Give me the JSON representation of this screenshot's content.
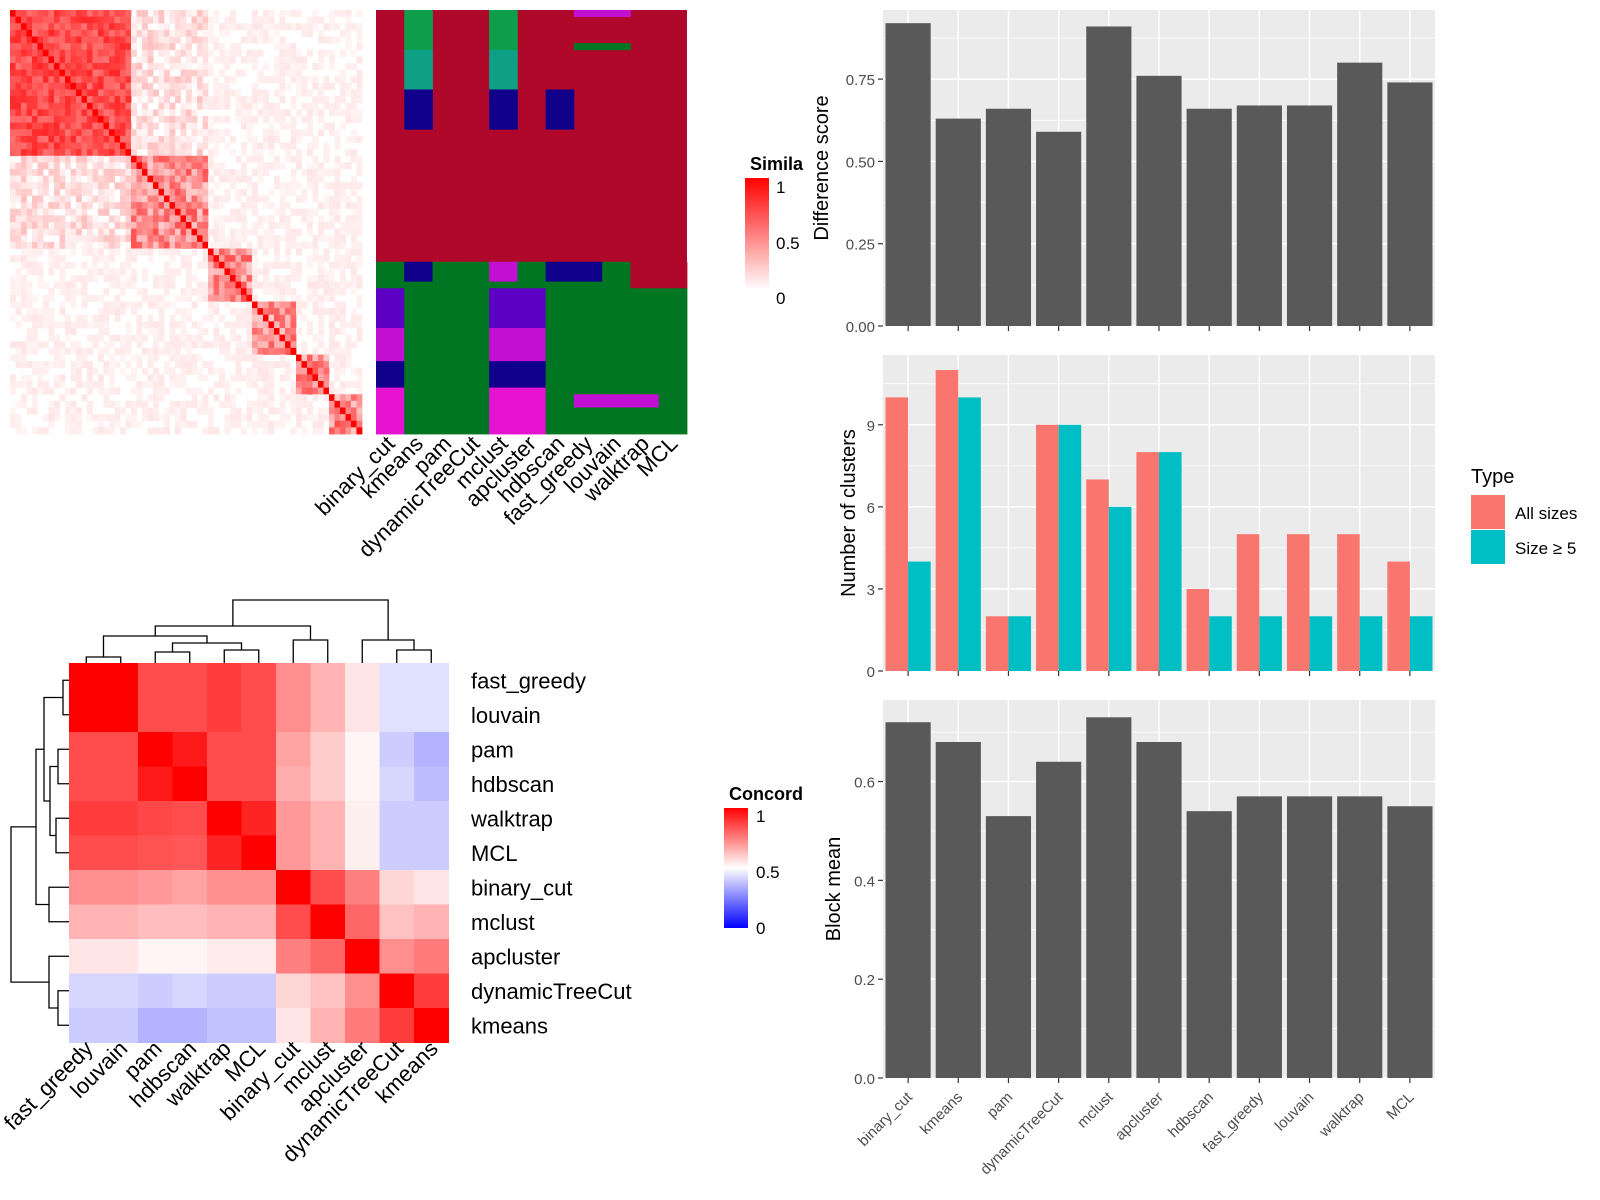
{
  "methods_order": [
    "binary_cut",
    "kmeans",
    "pam",
    "dynamicTreeCut",
    "mclust",
    "apcluster",
    "hdbscan",
    "fast_greedy",
    "louvain",
    "walktrap",
    "MCL"
  ],
  "colors": {
    "bar": "#595959",
    "panel_bg": "#ebebeb",
    "grid": "#ffffff",
    "all_sizes": "#F8766D",
    "size_ge5": "#00BFC4",
    "sim_high": "#ff0000",
    "sim_low": "#ffffff",
    "conc_low": "#0000ff",
    "cluster_palette": [
      "#b0082a",
      "#007622",
      "#11008a",
      "#c20fd2",
      "#5c00c4",
      "#0e9e4a",
      "#0e9f84",
      "#e512cf"
    ]
  },
  "similarity_heatmap": {
    "legend_title": "Simila",
    "legend_ticks": [
      "1",
      "0.5",
      "0"
    ]
  },
  "cluster_assignment": {
    "column_labels": [
      "binary_cut",
      "kmeans",
      "pam",
      "dynamicTreeCut",
      "mclust",
      "apcluster",
      "hdbscan",
      "fast_greedy",
      "louvain",
      "walktrap",
      "MCL"
    ]
  },
  "concordance": {
    "legend_title": "Concord",
    "legend_ticks": [
      "1",
      "0.5",
      "0"
    ],
    "row_labels": [
      "fast_greedy",
      "louvain",
      "pam",
      "hdbscan",
      "walktrap",
      "MCL",
      "binary_cut",
      "mclust",
      "apcluster",
      "dynamicTreeCut",
      "kmeans"
    ],
    "col_labels": [
      "fast_greedy",
      "louvain",
      "pam",
      "hdbscan",
      "walktrap",
      "MCL",
      "binary_cut",
      "mclust",
      "apcluster",
      "dynamicTreeCut",
      "kmeans"
    ]
  },
  "legend_type": {
    "title": "Type",
    "items": [
      "All sizes",
      "Size ≥ 5"
    ]
  },
  "chart_data": [
    {
      "type": "bar",
      "ylabel": "Difference score",
      "categories": [
        "binary_cut",
        "kmeans",
        "pam",
        "dynamicTreeCut",
        "mclust",
        "apcluster",
        "hdbscan",
        "fast_greedy",
        "louvain",
        "walktrap",
        "MCL"
      ],
      "values": [
        0.92,
        0.63,
        0.66,
        0.59,
        0.91,
        0.76,
        0.66,
        0.67,
        0.67,
        0.8,
        0.74
      ],
      "yticks": [
        "0.00",
        "0.25",
        "0.50",
        "0.75"
      ],
      "ylim": [
        0,
        0.96
      ]
    },
    {
      "type": "bar",
      "ylabel": "Number of clusters",
      "categories": [
        "binary_cut",
        "kmeans",
        "pam",
        "dynamicTreeCut",
        "mclust",
        "apcluster",
        "hdbscan",
        "fast_greedy",
        "louvain",
        "walktrap",
        "MCL"
      ],
      "series": [
        {
          "name": "All sizes",
          "values": [
            10,
            11,
            2,
            9,
            7,
            8,
            3,
            5,
            5,
            5,
            4
          ]
        },
        {
          "name": "Size ≥ 5",
          "values": [
            4,
            10,
            2,
            9,
            6,
            8,
            2,
            2,
            2,
            2,
            2
          ]
        }
      ],
      "yticks": [
        "0",
        "3",
        "6",
        "9"
      ],
      "ylim": [
        0,
        11.55
      ]
    },
    {
      "type": "bar",
      "ylabel": "Block mean",
      "categories": [
        "binary_cut",
        "kmeans",
        "pam",
        "dynamicTreeCut",
        "mclust",
        "apcluster",
        "hdbscan",
        "fast_greedy",
        "louvain",
        "walktrap",
        "MCL"
      ],
      "values": [
        0.72,
        0.68,
        0.53,
        0.64,
        0.73,
        0.68,
        0.54,
        0.57,
        0.57,
        0.57,
        0.55
      ],
      "yticks": [
        "0.0",
        "0.2",
        "0.4",
        "0.6"
      ],
      "ylim": [
        0,
        0.765
      ]
    },
    {
      "type": "heatmap",
      "legend_title": "Concord",
      "rows": [
        "fast_greedy",
        "louvain",
        "pam",
        "hdbscan",
        "walktrap",
        "MCL",
        "binary_cut",
        "mclust",
        "apcluster",
        "dynamicTreeCut",
        "kmeans"
      ],
      "cols": [
        "fast_greedy",
        "louvain",
        "pam",
        "hdbscan",
        "walktrap",
        "MCL",
        "binary_cut",
        "mclust",
        "apcluster",
        "dynamicTreeCut",
        "kmeans"
      ],
      "values": [
        [
          1.0,
          1.0,
          0.85,
          0.85,
          0.88,
          0.85,
          0.72,
          0.65,
          0.55,
          0.44,
          0.44
        ],
        [
          1.0,
          1.0,
          0.85,
          0.85,
          0.88,
          0.85,
          0.72,
          0.65,
          0.55,
          0.44,
          0.44
        ],
        [
          0.85,
          0.85,
          1.0,
          0.95,
          0.85,
          0.85,
          0.68,
          0.6,
          0.52,
          0.4,
          0.35
        ],
        [
          0.85,
          0.85,
          0.95,
          1.0,
          0.85,
          0.85,
          0.66,
          0.6,
          0.52,
          0.42,
          0.37
        ],
        [
          0.88,
          0.88,
          0.86,
          0.85,
          1.0,
          0.93,
          0.7,
          0.65,
          0.53,
          0.4,
          0.4
        ],
        [
          0.85,
          0.85,
          0.84,
          0.83,
          0.93,
          1.0,
          0.7,
          0.65,
          0.53,
          0.4,
          0.4
        ],
        [
          0.72,
          0.72,
          0.7,
          0.68,
          0.72,
          0.72,
          1.0,
          0.85,
          0.75,
          0.58,
          0.55
        ],
        [
          0.65,
          0.65,
          0.63,
          0.63,
          0.65,
          0.65,
          0.85,
          1.0,
          0.8,
          0.62,
          0.65
        ],
        [
          0.55,
          0.55,
          0.52,
          0.52,
          0.54,
          0.54,
          0.75,
          0.8,
          1.0,
          0.72,
          0.76
        ],
        [
          0.42,
          0.42,
          0.4,
          0.42,
          0.4,
          0.4,
          0.58,
          0.62,
          0.72,
          1.0,
          0.88
        ],
        [
          0.4,
          0.4,
          0.35,
          0.35,
          0.38,
          0.38,
          0.55,
          0.65,
          0.76,
          0.88,
          1.0
        ]
      ]
    }
  ]
}
